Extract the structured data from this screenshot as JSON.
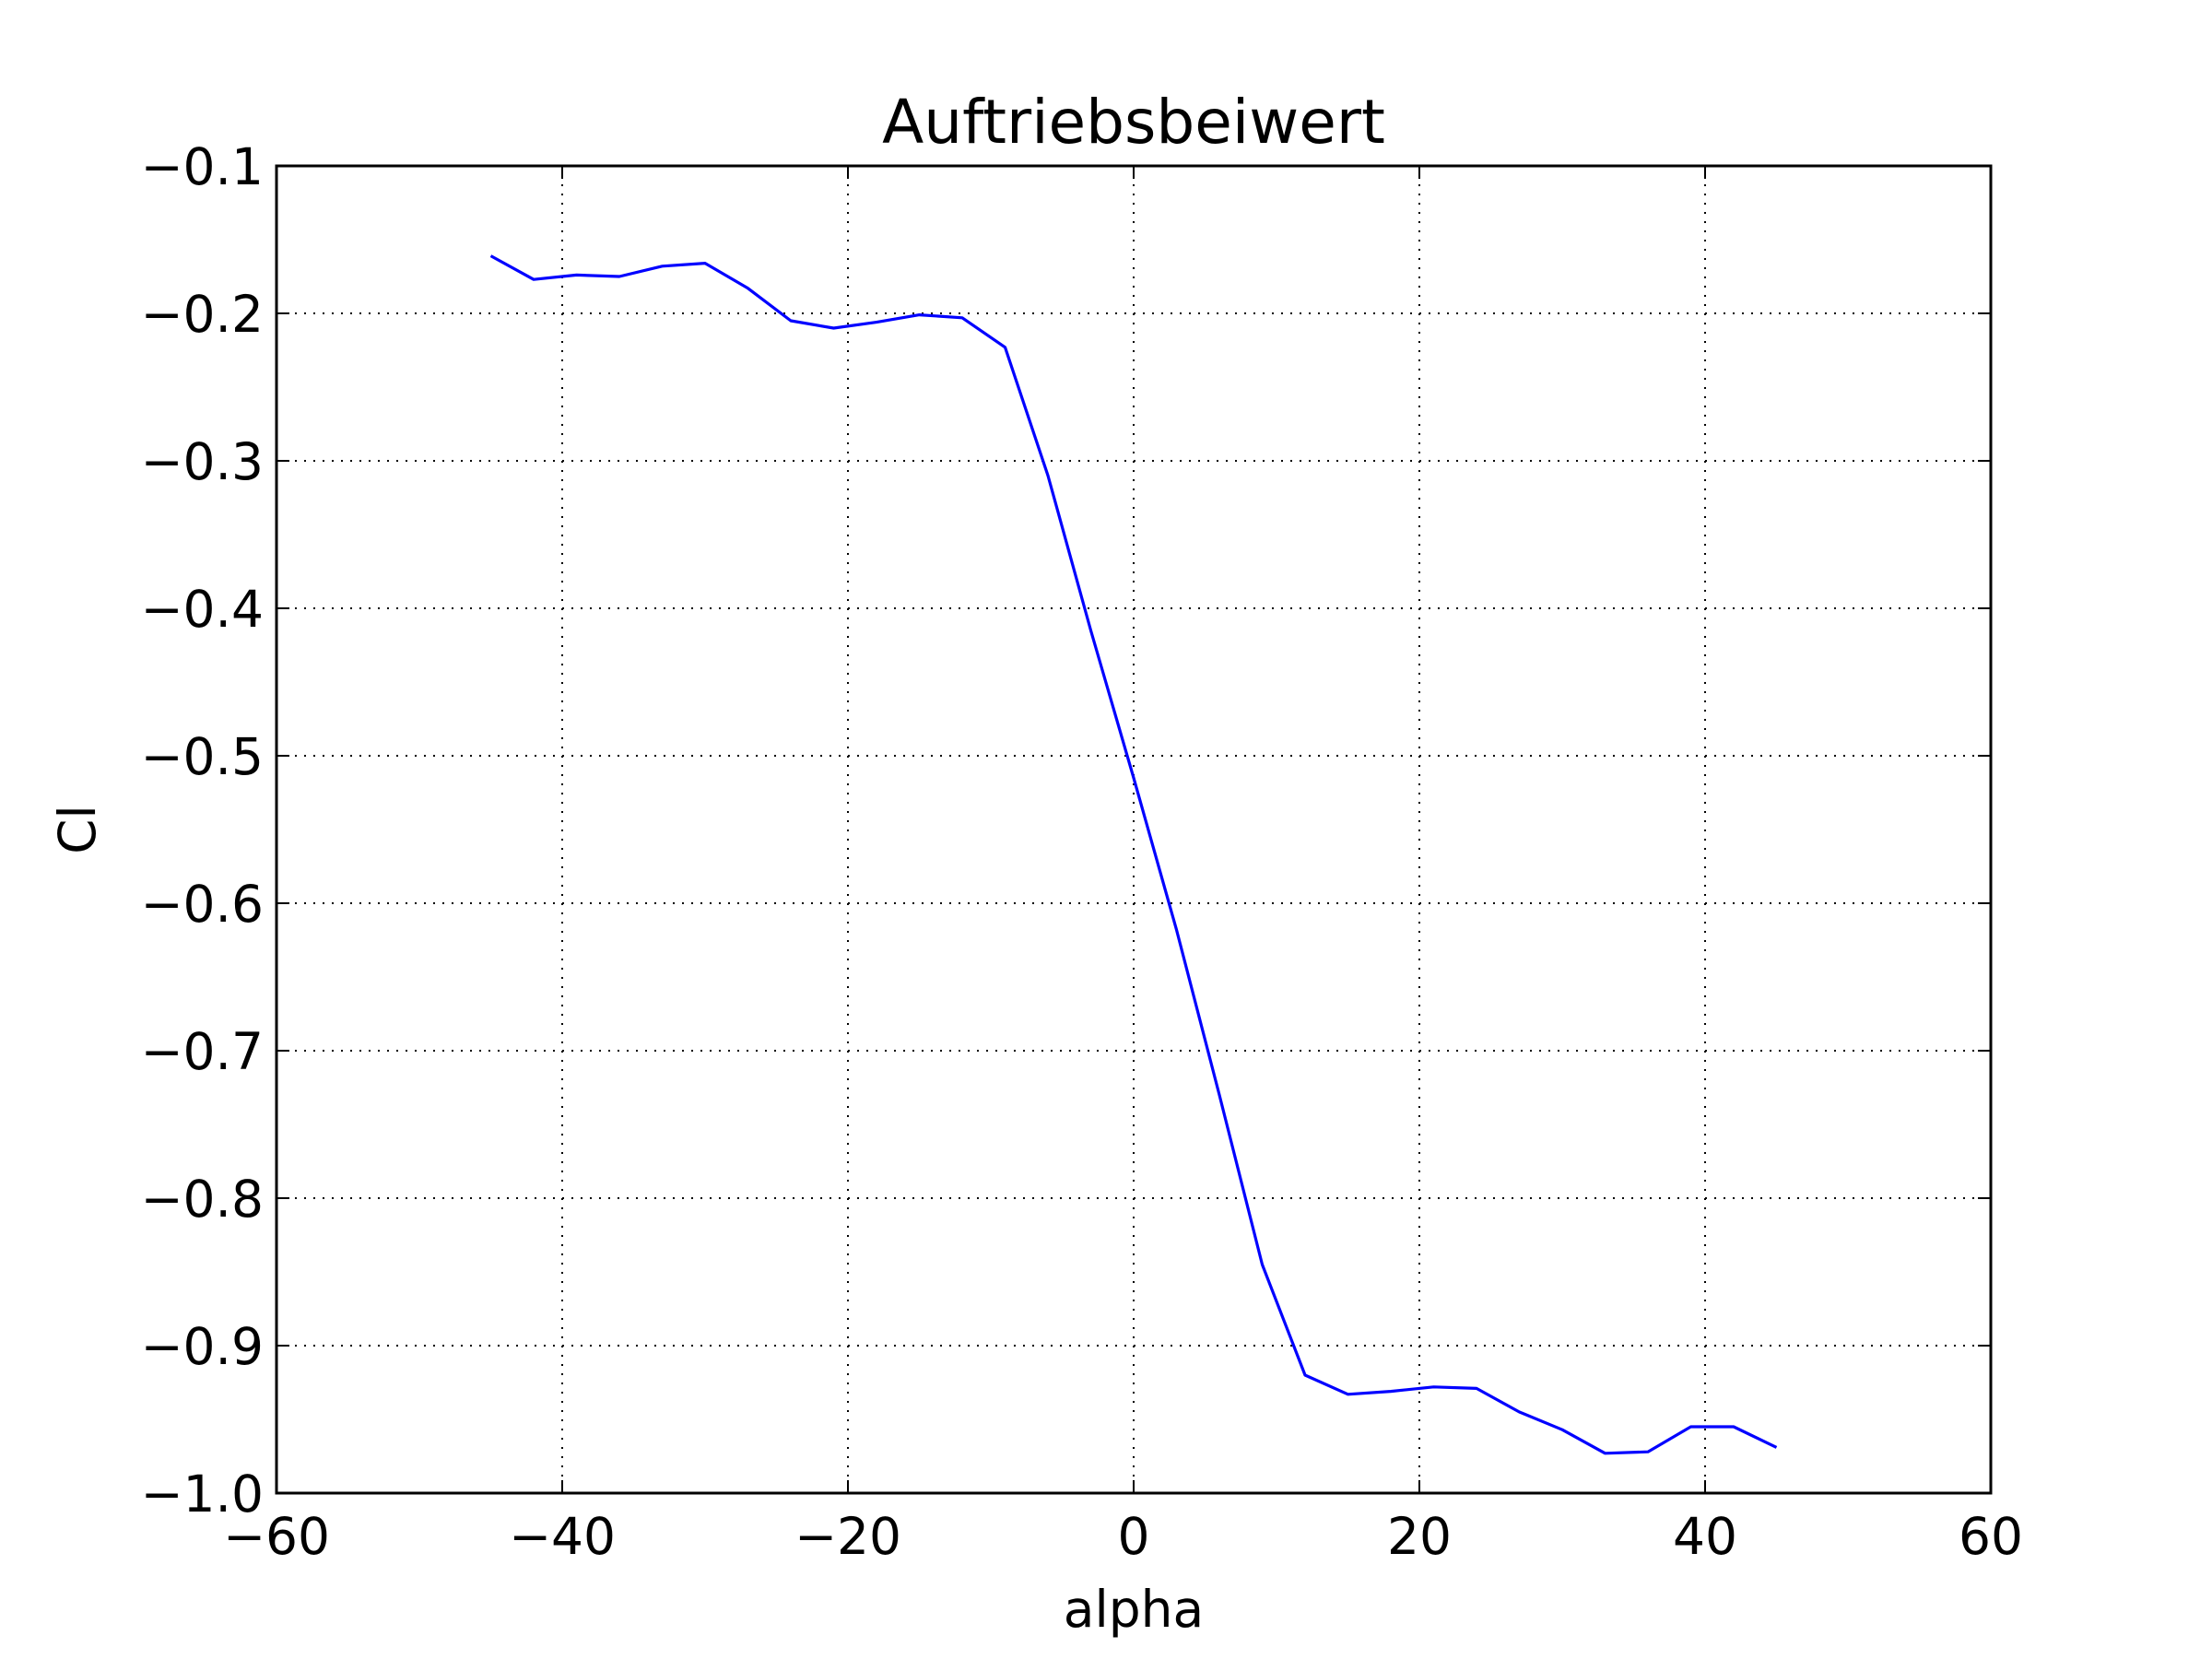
{
  "chart_data": {
    "type": "line",
    "title": "Auftriebsbeiwert",
    "xlabel": "alpha",
    "ylabel": "Cl",
    "xlim": [
      -60,
      60
    ],
    "ylim": [
      -1.0,
      -0.1
    ],
    "xticks": [
      -60,
      -40,
      -20,
      0,
      20,
      40,
      60
    ],
    "yticks": [
      -1.0,
      -0.9,
      -0.8,
      -0.7,
      -0.6,
      -0.5,
      -0.4,
      -0.3,
      -0.2,
      -0.1
    ],
    "xtick_labels": [
      "−60",
      "−40",
      "−20",
      "0",
      "20",
      "40",
      "60"
    ],
    "ytick_labels": [
      "−1.0",
      "−0.9",
      "−0.8",
      "−0.7",
      "−0.6",
      "−0.5",
      "−0.4",
      "−0.3",
      "−0.2",
      "−0.1"
    ],
    "grid": true,
    "color": "#0000ff",
    "series": [
      {
        "x": [
          -45,
          -42,
          -39,
          -36,
          -33,
          -30,
          -27,
          -24,
          -21,
          -18,
          -15,
          -12,
          -9,
          -6,
          -3,
          0,
          3,
          6,
          9,
          12,
          15,
          18,
          21,
          24,
          27,
          30,
          33,
          36,
          39,
          42,
          45
        ],
        "y": [
          -0.161,
          -0.177,
          -0.174,
          -0.175,
          -0.168,
          -0.166,
          -0.183,
          -0.205,
          -0.21,
          -0.206,
          -0.201,
          -0.203,
          -0.223,
          -0.31,
          -0.415,
          -0.515,
          -0.618,
          -0.73,
          -0.845,
          -0.92,
          -0.933,
          -0.931,
          -0.928,
          -0.929,
          -0.945,
          -0.957,
          -0.973,
          -0.972,
          -0.955,
          -0.955,
          -0.969
        ]
      }
    ]
  }
}
